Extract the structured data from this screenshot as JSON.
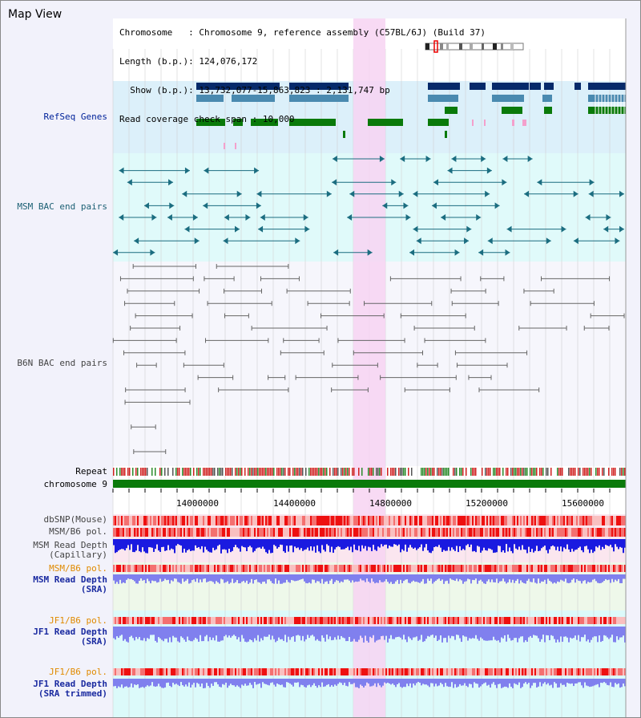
{
  "title": "Map View",
  "info": {
    "chromosome_key": "Chromosome   ",
    "chromosome_val": ": Chromosome 9, reference assembly (C57BL/6J) (Build 37)",
    "length_key": "Length (b.p.)",
    "length_val": ": 124,076,172",
    "show_key": "  Show (b.p.)",
    "show_val": ": 13,732,077-15,863,823 : 2,131,747 bp",
    "coverage_key": "Read coverage check span",
    "coverage_val": ": 10,000"
  },
  "tracks": {
    "refseq": "RefSeq Genes",
    "msm_bac": "MSM BAC end pairs",
    "b6n_bac": "B6N BAC end pairs",
    "repeat": "Repeat",
    "chromosome": "chromosome 9",
    "dbsnp": "dbSNP(Mouse)",
    "msm_b6_pol": "MSM/B6 pol.",
    "msm_depth_cap": "MSM Read Depth\n(Capillary)",
    "msm_b6_pol2": "MSM/B6 pol.",
    "msm_depth_sra": "MSM Read Depth\n(SRA)",
    "jf1_b6_pol": "JF1/B6 pol.",
    "jf1_depth_sra": "JF1 Read Depth\n(SRA)",
    "jf1_b6_pol2": "JF1/B6 pol.",
    "jf1_depth_trim": "JF1 Read Depth\n(SRA trimmed)"
  },
  "axis": {
    "ticks": [
      "14000000",
      "14400000",
      "14800000",
      "15200000",
      "15600000"
    ],
    "range": [
      13732077,
      15863823
    ]
  },
  "colors": {
    "refseq_bg": "#dcf0fa",
    "msm_bg": "#e0fafa",
    "highlight": "#f7d4f2",
    "navy": "#062a6a",
    "steel": "#4a8ab0",
    "green": "#0a7a0a",
    "teal": "#1b6d80",
    "gray": "#666666",
    "red": "#ee2222",
    "depth_blue": "#1a1ae0",
    "depth_light": "#8080ee",
    "chrom_green": "#0a7a0a"
  }
}
